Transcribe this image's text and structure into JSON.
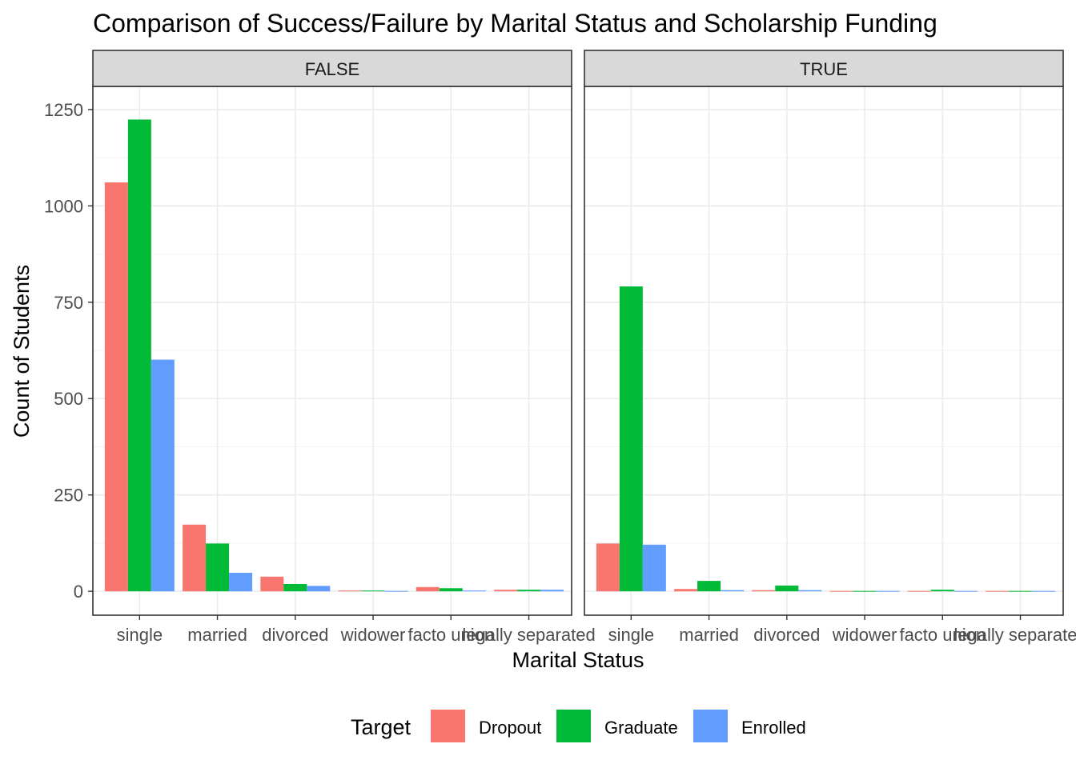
{
  "chart_data": {
    "type": "bar",
    "title": "Comparison of Success/Failure by Marital Status and Scholarship Funding",
    "xlabel": "Marital Status",
    "ylabel": "Count of Students",
    "ylim": [
      -62,
      1310
    ],
    "yticks": [
      0,
      250,
      500,
      750,
      1000,
      1250
    ],
    "categories": [
      "single",
      "married",
      "divorced",
      "widower",
      "facto union",
      "legally separated"
    ],
    "legend": {
      "title": "Target",
      "position": "bottom"
    },
    "colors": {
      "Dropout": "#F8766D",
      "Graduate": "#00BA38",
      "Enrolled": "#619CFF"
    },
    "facets": [
      {
        "label": "FALSE",
        "series": [
          {
            "name": "Dropout",
            "values": [
              1061,
              173,
              38,
              2,
              11,
              4
            ]
          },
          {
            "name": "Graduate",
            "values": [
              1224,
              124,
              19,
              2,
              8,
              4
            ]
          },
          {
            "name": "Enrolled",
            "values": [
              601,
              48,
              14,
              1,
              2,
              4
            ]
          }
        ]
      },
      {
        "label": "TRUE",
        "series": [
          {
            "name": "Dropout",
            "values": [
              124,
              6,
              3,
              1,
              1,
              1
            ]
          },
          {
            "name": "Graduate",
            "values": [
              791,
              27,
              15,
              1,
              4,
              1
            ]
          },
          {
            "name": "Enrolled",
            "values": [
              121,
              3,
              3,
              1,
              1,
              1
            ]
          }
        ]
      }
    ]
  }
}
